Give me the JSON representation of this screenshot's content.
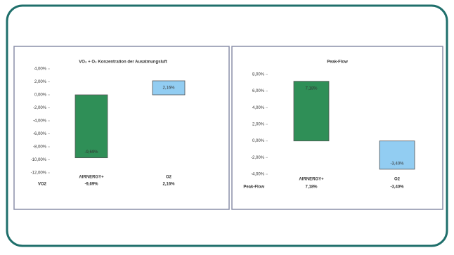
{
  "chart_data": [
    {
      "type": "bar",
      "title": "VO₂ + O₂ Konzentration der Ausatmungsluft",
      "categories": [
        "AIRNERGY+",
        "O2"
      ],
      "values": [
        -9.69,
        2.16
      ],
      "value_labels": [
        "-9,69%",
        "2,16%"
      ],
      "colors": [
        "#2f8f57",
        "#92cdf2"
      ],
      "ylim": [
        -12,
        4
      ],
      "yticks": [
        {
          "value": 4,
          "label": "4,00%"
        },
        {
          "value": 2,
          "label": "2,00%"
        },
        {
          "value": 0,
          "label": "0,00%"
        },
        {
          "value": -2,
          "label": "-2,00%"
        },
        {
          "value": -4,
          "label": "-4,00%"
        },
        {
          "value": -6,
          "label": "-6,00%"
        },
        {
          "value": -8,
          "label": "-8,00%"
        },
        {
          "value": -10,
          "label": "-10,00%"
        },
        {
          "value": -12,
          "label": "-12,00%"
        }
      ],
      "table": {
        "row_label": "VO2",
        "cells": [
          "-9,69%",
          "2,16%"
        ]
      }
    },
    {
      "type": "bar",
      "title": "Peak-Flow",
      "categories": [
        "AIRNERGY+",
        "O2"
      ],
      "values": [
        7.18,
        -3.4
      ],
      "value_labels": [
        "7,18%",
        "-3,40%"
      ],
      "colors": [
        "#2f8f57",
        "#92cdf2"
      ],
      "ylim": [
        -4,
        8
      ],
      "yticks": [
        {
          "value": 8,
          "label": "8,00%"
        },
        {
          "value": 6,
          "label": "6,00%"
        },
        {
          "value": 4,
          "label": "4,00%"
        },
        {
          "value": 2,
          "label": "2,00%"
        },
        {
          "value": 0,
          "label": "0,00%"
        },
        {
          "value": -2,
          "label": "-2,00%"
        },
        {
          "value": -4,
          "label": "-4,00%"
        }
      ],
      "table": {
        "row_label": "Peak-Flow",
        "cells": [
          "7,18%",
          "-3,40%"
        ]
      }
    }
  ]
}
